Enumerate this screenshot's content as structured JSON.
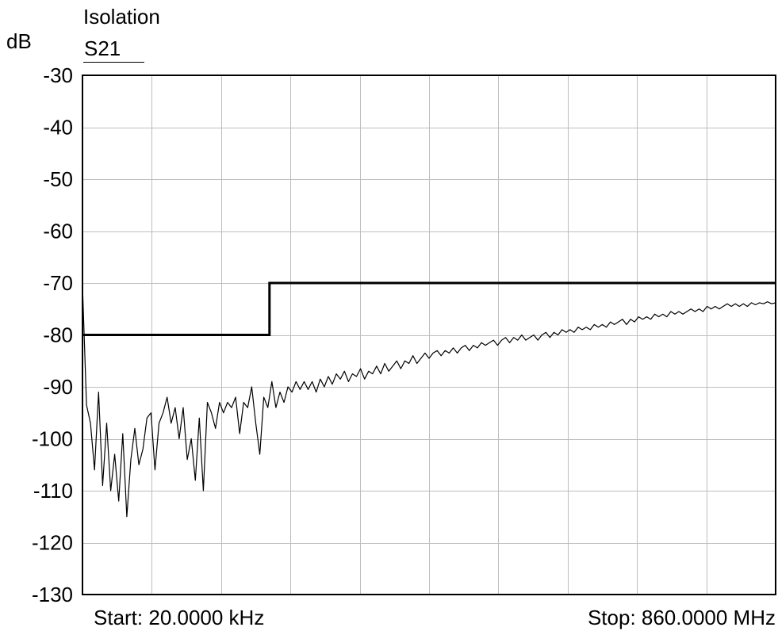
{
  "chart_data": {
    "type": "line",
    "title": "Isolation",
    "ylabel": "dB",
    "x_start_label": "Start: 20.0000 kHz",
    "x_stop_label": "Stop: 860.0000 MHz",
    "xlim": [
      0.02,
      860
    ],
    "ylim": [
      -130,
      -30
    ],
    "yticks": [
      -30,
      -40,
      -50,
      -60,
      -70,
      -80,
      -90,
      -100,
      -110,
      -120,
      -130
    ],
    "grid": true,
    "grid_color": "#bdbdbd",
    "legend": "top-left",
    "series": [
      {
        "name": "S21",
        "color": "#000000",
        "x": [
          0.02,
          5,
          10,
          15,
          20,
          25,
          30,
          35,
          40,
          45,
          50,
          55,
          60,
          65,
          70,
          75,
          80,
          85,
          90,
          95,
          100,
          105,
          110,
          115,
          120,
          125,
          130,
          135,
          140,
          145,
          150,
          155,
          160,
          165,
          170,
          175,
          180,
          185,
          190,
          195,
          200,
          205,
          210,
          215,
          220,
          225,
          230,
          235,
          240,
          245,
          250,
          255,
          260,
          265,
          270,
          275,
          280,
          285,
          290,
          295,
          300,
          305,
          310,
          315,
          320,
          325,
          330,
          335,
          340,
          345,
          350,
          355,
          360,
          365,
          370,
          375,
          380,
          385,
          390,
          395,
          400,
          405,
          410,
          415,
          420,
          425,
          430,
          435,
          440,
          445,
          450,
          455,
          460,
          465,
          470,
          475,
          480,
          485,
          490,
          495,
          500,
          505,
          510,
          515,
          520,
          525,
          530,
          535,
          540,
          545,
          550,
          555,
          560,
          565,
          570,
          575,
          580,
          585,
          590,
          595,
          600,
          605,
          610,
          615,
          620,
          625,
          630,
          635,
          640,
          645,
          650,
          655,
          660,
          665,
          670,
          675,
          680,
          685,
          690,
          695,
          700,
          705,
          710,
          715,
          720,
          725,
          730,
          735,
          740,
          745,
          750,
          755,
          760,
          765,
          770,
          775,
          780,
          785,
          790,
          795,
          800,
          805,
          810,
          815,
          820,
          825,
          830,
          835,
          840,
          845,
          850,
          855,
          860
        ],
        "y": [
          -70.5,
          -93.5,
          -97,
          -106,
          -91,
          -109,
          -97,
          -110,
          -103,
          -112,
          -99,
          -115,
          -104,
          -98,
          -105,
          -102,
          -96,
          -95,
          -106,
          -97,
          -95,
          -92,
          -97,
          -94,
          -100,
          -94,
          -104,
          -100,
          -108,
          -96,
          -110,
          -93,
          -95,
          -98,
          -93,
          -95,
          -93,
          -94,
          -92,
          -99,
          -93,
          -94,
          -90,
          -97,
          -103,
          -92,
          -94,
          -89,
          -94,
          -91,
          -93,
          -90,
          -91,
          -89,
          -90.5,
          -89,
          -90.5,
          -89,
          -91,
          -88.5,
          -90,
          -88,
          -89.5,
          -87.5,
          -88.5,
          -87,
          -89,
          -87.5,
          -88,
          -86.5,
          -88.5,
          -87,
          -87.5,
          -86,
          -87.5,
          -85.5,
          -87,
          -86,
          -85,
          -86.5,
          -85,
          -85.5,
          -84,
          -85.5,
          -84.5,
          -83.5,
          -84.5,
          -83.5,
          -83,
          -84,
          -83,
          -83.5,
          -82.5,
          -83.5,
          -82.5,
          -82,
          -83,
          -82,
          -82.5,
          -81.5,
          -82,
          -81.5,
          -81,
          -82,
          -81,
          -80.5,
          -81.5,
          -80.5,
          -81,
          -80,
          -81,
          -80.5,
          -80,
          -81,
          -80,
          -79.5,
          -80.5,
          -79.5,
          -80,
          -79,
          -79.5,
          -79,
          -79.5,
          -78.5,
          -79,
          -78.5,
          -79,
          -78,
          -78.5,
          -78,
          -78.5,
          -77.5,
          -78,
          -77.5,
          -77,
          -78,
          -77,
          -77.5,
          -76.5,
          -77,
          -76.5,
          -77,
          -76,
          -76.5,
          -76,
          -76.5,
          -75.5,
          -76,
          -75.5,
          -76,
          -75.5,
          -75,
          -75.5,
          -75,
          -75.5,
          -74.5,
          -75,
          -74.5,
          -75,
          -74.5,
          -74,
          -74.5,
          -74,
          -74.5,
          -74,
          -74.5,
          -73.8,
          -74.2,
          -73.8,
          -74,
          -73.6,
          -74,
          -73.8
        ]
      }
    ],
    "limit_line": {
      "color": "#000000",
      "segments": [
        {
          "x_start": 0.02,
          "x_end": 232,
          "y": -80
        },
        {
          "x_start": 232,
          "x_end": 860,
          "y": -70
        }
      ]
    }
  }
}
